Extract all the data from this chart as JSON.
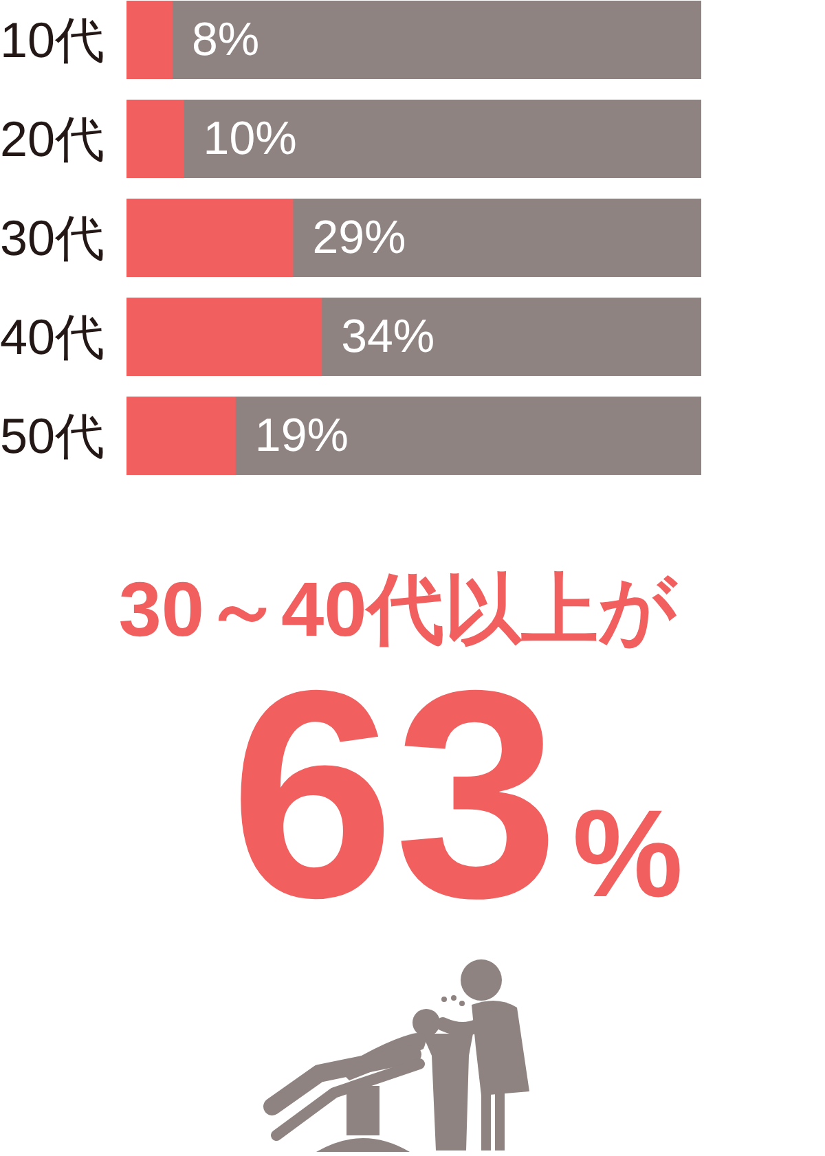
{
  "chart_data": {
    "type": "bar",
    "orientation": "horizontal",
    "categories": [
      "10代",
      "20代",
      "30代",
      "40代",
      "50代"
    ],
    "series": [
      {
        "color": "#f15f5f",
        "values": [
          8,
          10,
          29,
          34,
          19
        ],
        "value_labels": [
          "8%",
          "10%",
          "29%",
          "34%",
          "19%"
        ]
      }
    ],
    "xlim": [
      0,
      100
    ],
    "tick_labels": "y",
    "annotations": [
      "30～40代以上が",
      "63%"
    ]
  }
}
